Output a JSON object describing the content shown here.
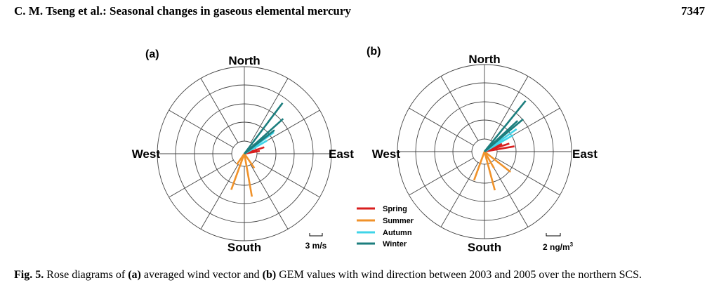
{
  "header": {
    "running_title": "C. M. Tseng et al.: Seasonal changes in gaseous elemental mercury",
    "page_number": "7347"
  },
  "colors": {
    "spring": "#d81e1e",
    "summer": "#f0922a",
    "autumn": "#3fd4e8",
    "winter": "#1c7e7e",
    "grid": "#444444"
  },
  "legend": [
    {
      "label": "Spring",
      "color": "#d81e1e"
    },
    {
      "label": "Summer",
      "color": "#f0922a"
    },
    {
      "label": "Autumn",
      "color": "#3fd4e8"
    },
    {
      "label": "Winter",
      "color": "#1c7e7e"
    }
  ],
  "chart_data": [
    {
      "type": "rose",
      "panel_label": "(a)",
      "direction_labels": {
        "north": "North",
        "south": "South",
        "east": "East",
        "west": "West"
      },
      "scale_label": "3 m/s",
      "series": [
        {
          "name": "Spring",
          "vectors": [
            {
              "bearing_deg": 72,
              "length": 0.24
            },
            {
              "bearing_deg": 80,
              "length": 0.18
            }
          ]
        },
        {
          "name": "Summer",
          "vectors": [
            {
              "bearing_deg": 200,
              "length": 0.44
            },
            {
              "bearing_deg": 170,
              "length": 0.5
            },
            {
              "bearing_deg": 145,
              "length": 0.2
            },
            {
              "bearing_deg": 215,
              "length": 0.15
            }
          ]
        },
        {
          "name": "Autumn",
          "vectors": [
            {
              "bearing_deg": 54,
              "length": 0.42
            },
            {
              "bearing_deg": 60,
              "length": 0.3
            }
          ]
        },
        {
          "name": "Winter",
          "vectors": [
            {
              "bearing_deg": 37,
              "length": 0.73
            },
            {
              "bearing_deg": 48,
              "length": 0.6
            },
            {
              "bearing_deg": 52,
              "length": 0.44
            }
          ]
        }
      ]
    },
    {
      "type": "rose",
      "panel_label": "(b)",
      "direction_labels": {
        "north": "North",
        "south": "South",
        "east": "East",
        "west": "West"
      },
      "scale_label_base": "2 ng/m",
      "scale_label_sup": "3",
      "series": [
        {
          "name": "Spring",
          "vectors": [
            {
              "bearing_deg": 72,
              "length": 0.3
            },
            {
              "bearing_deg": 66,
              "length": 0.22
            },
            {
              "bearing_deg": 80,
              "length": 0.35
            }
          ]
        },
        {
          "name": "Summer",
          "vectors": [
            {
              "bearing_deg": 128,
              "length": 0.38
            },
            {
              "bearing_deg": 165,
              "length": 0.46
            },
            {
              "bearing_deg": 200,
              "length": 0.35
            },
            {
              "bearing_deg": 150,
              "length": 0.22
            }
          ]
        },
        {
          "name": "Autumn",
          "vectors": [
            {
              "bearing_deg": 55,
              "length": 0.45
            },
            {
              "bearing_deg": 60,
              "length": 0.38
            }
          ]
        },
        {
          "name": "Winter",
          "vectors": [
            {
              "bearing_deg": 39,
              "length": 0.75
            },
            {
              "bearing_deg": 50,
              "length": 0.58
            },
            {
              "bearing_deg": 47,
              "length": 0.52
            }
          ]
        }
      ]
    }
  ],
  "caption": {
    "fig_label": "Fig. 5.",
    "t1": " Rose diagrams of ",
    "a_label": "(a)",
    "t2": " averaged wind vector and ",
    "b_label": "(b)",
    "t3": " GEM values with wind direction between 2003 and 2005 over the northern SCS."
  }
}
